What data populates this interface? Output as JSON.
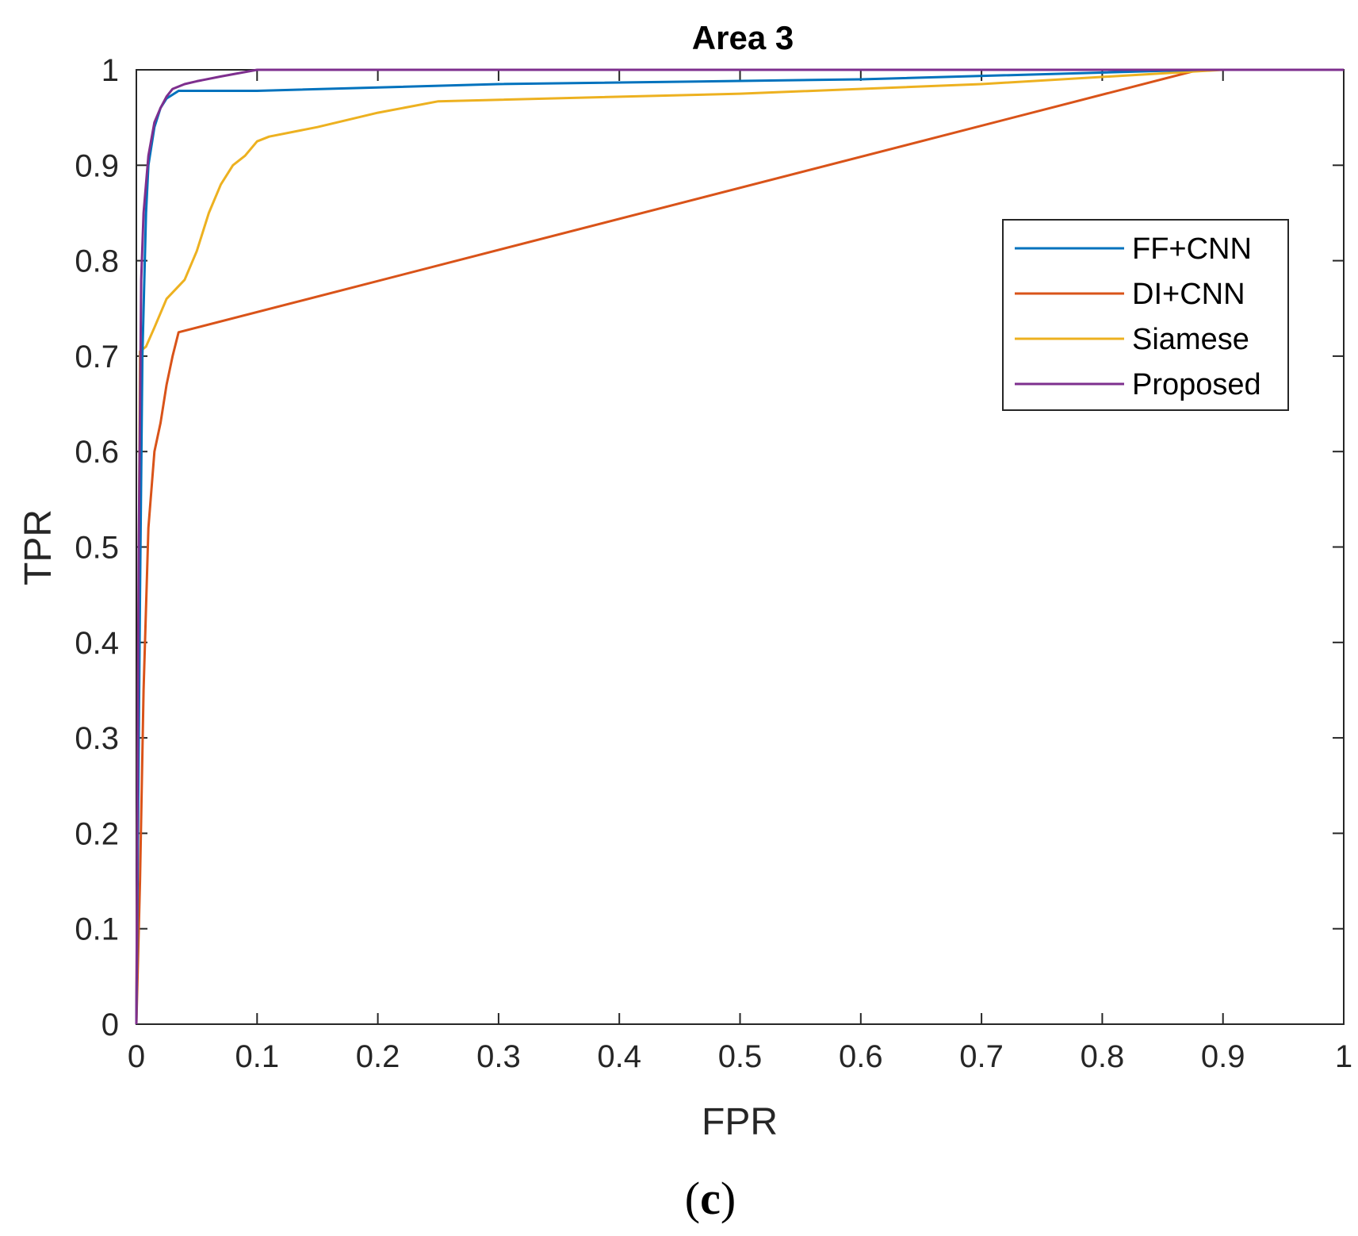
{
  "chart_data": {
    "type": "line",
    "title": "Area 3",
    "xlabel": "FPR",
    "ylabel": "TPR",
    "xlim": [
      0,
      1
    ],
    "ylim": [
      0,
      1
    ],
    "xticks": [
      0,
      0.1,
      0.2,
      0.3,
      0.4,
      0.5,
      0.6,
      0.7,
      0.8,
      0.9,
      1
    ],
    "xtick_labels": [
      "0",
      "0.1",
      "0.2",
      "0.3",
      "0.4",
      "0.5",
      "0.6",
      "0.7",
      "0.8",
      "0.9",
      "1"
    ],
    "yticks": [
      0,
      0.1,
      0.2,
      0.3,
      0.4,
      0.5,
      0.6,
      0.7,
      0.8,
      0.9,
      1
    ],
    "ytick_labels": [
      "0",
      "0.1",
      "0.2",
      "0.3",
      "0.4",
      "0.5",
      "0.6",
      "0.7",
      "0.8",
      "0.9",
      "1"
    ],
    "grid": false,
    "legend_position": "upper-right",
    "series": [
      {
        "name": "FF+CNN",
        "color": "#0072BD",
        "x": [
          0,
          0.003,
          0.005,
          0.008,
          0.01,
          0.015,
          0.02,
          0.025,
          0.035,
          0.05,
          0.1,
          0.3,
          0.6,
          0.88,
          1
        ],
        "y": [
          0,
          0.45,
          0.7,
          0.85,
          0.9,
          0.94,
          0.96,
          0.97,
          0.978,
          0.978,
          0.978,
          0.985,
          0.99,
          1,
          1
        ]
      },
      {
        "name": "DI+CNN",
        "color": "#D95319",
        "x": [
          0,
          0.003,
          0.006,
          0.01,
          0.015,
          0.02,
          0.025,
          0.03,
          0.035,
          0.88,
          1
        ],
        "y": [
          0,
          0.15,
          0.35,
          0.52,
          0.6,
          0.63,
          0.67,
          0.7,
          0.725,
          1,
          1
        ]
      },
      {
        "name": "Siamese",
        "color": "#EDB120",
        "x": [
          0,
          0.003,
          0.008,
          0.015,
          0.025,
          0.04,
          0.05,
          0.06,
          0.07,
          0.08,
          0.09,
          0.1,
          0.11,
          0.15,
          0.2,
          0.25,
          0.5,
          0.7,
          0.9,
          1
        ],
        "y": [
          0,
          0.705,
          0.71,
          0.73,
          0.76,
          0.78,
          0.81,
          0.85,
          0.88,
          0.9,
          0.91,
          0.925,
          0.93,
          0.94,
          0.955,
          0.967,
          0.975,
          0.985,
          1,
          1
        ]
      },
      {
        "name": "Proposed",
        "color": "#7E2F8E",
        "x": [
          0,
          0.002,
          0.004,
          0.006,
          0.01,
          0.015,
          0.02,
          0.025,
          0.03,
          0.04,
          0.05,
          0.07,
          0.1,
          0.2,
          0.5,
          0.9,
          1
        ],
        "y": [
          0,
          0.5,
          0.78,
          0.85,
          0.91,
          0.945,
          0.96,
          0.972,
          0.98,
          0.985,
          0.988,
          0.993,
          1,
          1,
          1,
          1,
          1
        ]
      }
    ],
    "caption": {
      "open": "(",
      "letter": "c",
      "close": ")"
    }
  }
}
